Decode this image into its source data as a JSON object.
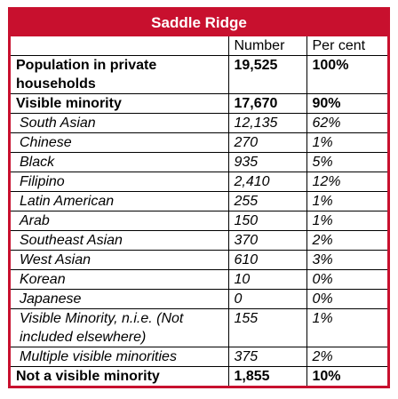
{
  "title": "Saddle Ridge",
  "table": {
    "header": [
      "Number",
      "Per cent"
    ],
    "rows": [
      [
        "Population in private households",
        "19,525",
        "100%"
      ],
      [
        "Visible minority",
        "17,670",
        "90%"
      ],
      [
        "South Asian",
        "12,135",
        "62%"
      ],
      [
        "Chinese",
        "270",
        "1%"
      ],
      [
        "Black",
        "935",
        "5%"
      ],
      [
        "Filipino",
        "2,410",
        "12%"
      ],
      [
        "Latin American",
        "255",
        "1%"
      ],
      [
        "Arab",
        "150",
        "1%"
      ],
      [
        "Southeast Asian",
        "370",
        "2%"
      ],
      [
        "West Asian",
        "610",
        "3%"
      ],
      [
        "Korean",
        "10",
        "0%"
      ],
      [
        "Japanese",
        "0",
        "0%"
      ],
      [
        "Visible Minority, n.i.e. (Not included elsewhere)",
        "155",
        "1%"
      ],
      [
        "Multiple visible minorities",
        "375",
        "2%"
      ],
      [
        "Not a visible minority",
        "1,855",
        "10%"
      ]
    ]
  }
}
